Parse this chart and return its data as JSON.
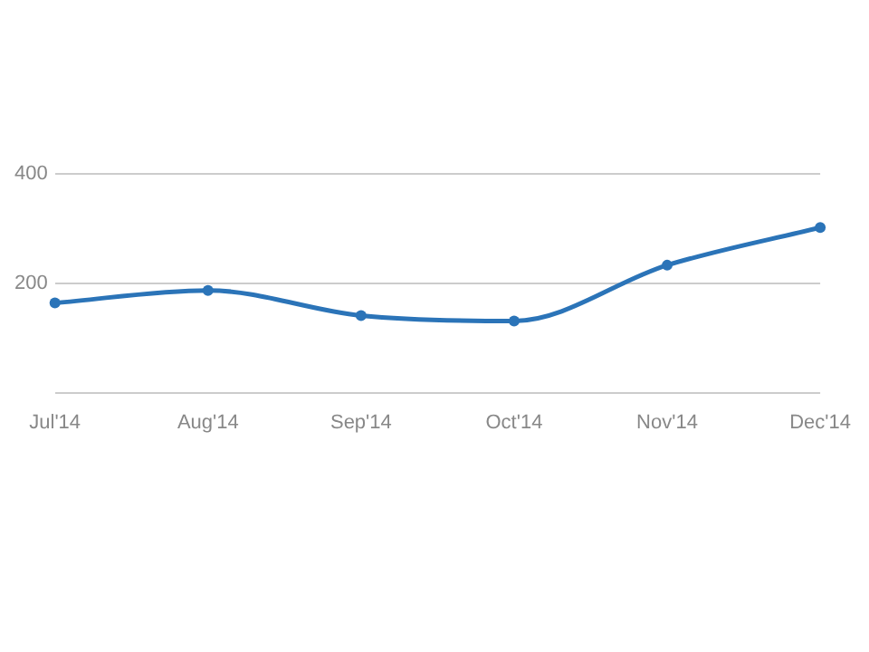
{
  "chart_data": {
    "type": "line",
    "categories": [
      "Jul'14",
      "Aug'14",
      "Sep'14",
      "Oct'14",
      "Nov'14",
      "Dec'14"
    ],
    "series": [
      {
        "color": "#2b74b8",
        "values": [
          164,
          187,
          141,
          131,
          233,
          302
        ]
      }
    ],
    "ylim": [
      0,
      400
    ],
    "yticks": [
      {
        "value": 0,
        "label": null
      },
      200,
      400
    ],
    "grid": "y",
    "legend": false,
    "marker": "circle",
    "line_style": "solid"
  }
}
